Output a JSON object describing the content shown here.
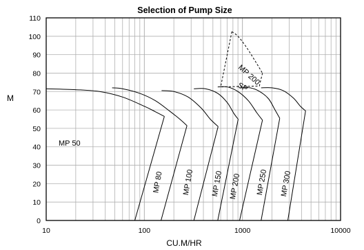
{
  "chart_data": {
    "type": "line",
    "title": "Selection of Pump Size",
    "xlabel": "CU.M/HR",
    "ylabel": "M",
    "x_scale": "log",
    "xlim": [
      10,
      10000
    ],
    "ylim": [
      0,
      110
    ],
    "x_ticks": [
      10,
      100,
      1000,
      10000
    ],
    "x_tick_labels": [
      "10",
      "100",
      "1000",
      "10000"
    ],
    "y_ticks": [
      0,
      10,
      20,
      30,
      40,
      50,
      60,
      70,
      80,
      90,
      100,
      110
    ],
    "y_tick_labels": [
      "0",
      "10",
      "20",
      "30",
      "40",
      "50",
      "60",
      "70",
      "80",
      "90",
      "100",
      "110"
    ],
    "grid": true,
    "line_color": "#000000",
    "grid_color": "#b0b0b0",
    "series": [
      {
        "name": "MP 50",
        "label": "MP 50",
        "dashed": false,
        "curve": [
          [
            10,
            71.5
          ],
          [
            20,
            71
          ],
          [
            35,
            70
          ],
          [
            60,
            67
          ],
          [
            100,
            62
          ],
          [
            130,
            59
          ],
          [
            160,
            56.5
          ]
        ],
        "boundary": [
          [
            160,
            56.5
          ],
          [
            80,
            0
          ]
        ]
      },
      {
        "name": "MP 80",
        "label": "MP 80",
        "dashed": false,
        "curve": [
          [
            47,
            72
          ],
          [
            60,
            71.5
          ],
          [
            90,
            69
          ],
          [
            130,
            65
          ],
          [
            180,
            59.5
          ],
          [
            230,
            55
          ],
          [
            272,
            51.5
          ]
        ],
        "boundary": [
          [
            272,
            51.5
          ],
          [
            148,
            0
          ]
        ]
      },
      {
        "name": "MP 100",
        "label": "MP 100",
        "dashed": false,
        "curve": [
          [
            150,
            70.5
          ],
          [
            200,
            70
          ],
          [
            280,
            67
          ],
          [
            380,
            61
          ],
          [
            470,
            55
          ],
          [
            565,
            51
          ]
        ],
        "boundary": [
          [
            565,
            51
          ],
          [
            320,
            0
          ]
        ]
      },
      {
        "name": "MP 150",
        "label": "MP 150",
        "dashed": false,
        "curve": [
          [
            320,
            71.5
          ],
          [
            420,
            71.5
          ],
          [
            560,
            69
          ],
          [
            700,
            64
          ],
          [
            820,
            58
          ],
          [
            905,
            55
          ]
        ],
        "boundary": [
          [
            905,
            55
          ],
          [
            560,
            0
          ]
        ]
      },
      {
        "name": "MP 200",
        "label": "MP 200",
        "dashed": false,
        "curve": [
          [
            560,
            72.5
          ],
          [
            700,
            72.5
          ],
          [
            900,
            70
          ],
          [
            1150,
            65
          ],
          [
            1400,
            58.5
          ],
          [
            1600,
            54.5
          ]
        ],
        "boundary": [
          [
            1600,
            54.5
          ],
          [
            935,
            0
          ]
        ]
      },
      {
        "name": "MP 250",
        "label": "MP 250",
        "dashed": false,
        "curve": [
          [
            930,
            72
          ],
          [
            1200,
            72
          ],
          [
            1500,
            70
          ],
          [
            1850,
            66
          ],
          [
            2150,
            60
          ],
          [
            2400,
            55.5
          ]
        ],
        "boundary": [
          [
            2400,
            55.5
          ],
          [
            1550,
            0
          ]
        ]
      },
      {
        "name": "MP 300",
        "label": "MP 300",
        "dashed": false,
        "curve": [
          [
            1550,
            72
          ],
          [
            2000,
            72
          ],
          [
            2600,
            70.5
          ],
          [
            3300,
            66.5
          ],
          [
            3900,
            62
          ],
          [
            4400,
            59.5
          ]
        ],
        "boundary": [
          [
            4400,
            59.5
          ],
          [
            2900,
            0
          ]
        ]
      },
      {
        "name": "MP 200 SP",
        "label": "MP 200 SP",
        "dashed": true,
        "curve": [
          [
            780,
            102.5
          ],
          [
            900,
            100
          ],
          [
            1100,
            94
          ],
          [
            1350,
            86.5
          ],
          [
            1600,
            80
          ]
        ],
        "boundary": [
          [
            780,
            102.5
          ],
          [
            600,
            72.5
          ]
        ]
      }
    ]
  }
}
